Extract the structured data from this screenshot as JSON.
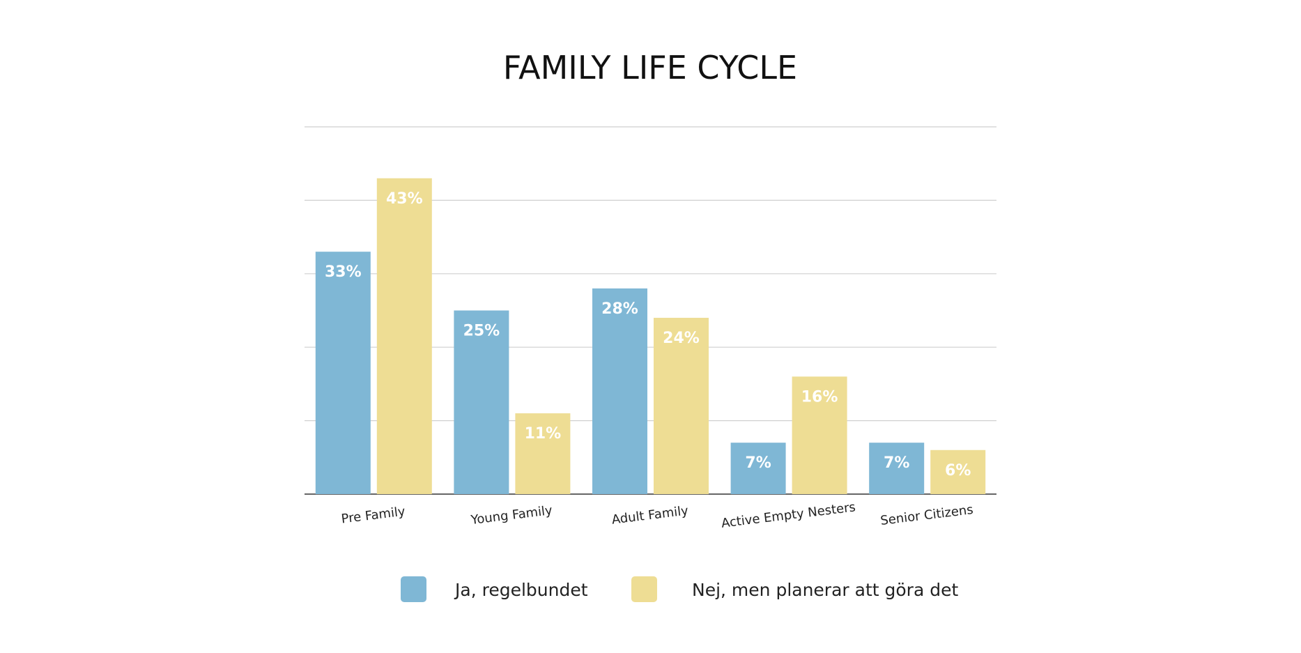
{
  "chart_data": {
    "type": "bar",
    "title": "FAMILY LIFE CYCLE",
    "xlabel": "",
    "ylabel": "",
    "categories": [
      "Pre Family",
      "Young Family",
      "Adult Family",
      "Active Empty Nesters",
      "Senior Citizens"
    ],
    "series": [
      {
        "name": "Ja, regelbundet",
        "color": "#7FB7D5",
        "values": [
          33,
          25,
          28,
          7,
          7
        ],
        "labels": [
          "33%",
          "25%",
          "28%",
          "7%",
          "7%"
        ]
      },
      {
        "name": "Nej, men planerar att göra det",
        "color": "#EEDD94",
        "values": [
          43,
          11,
          24,
          16,
          6
        ],
        "labels": [
          "43%",
          "11%",
          "24%",
          "16%",
          "6%"
        ]
      }
    ],
    "ylim": [
      0,
      50
    ],
    "y_ticks_shown": false,
    "grid": true,
    "legend_position": "bottom"
  }
}
